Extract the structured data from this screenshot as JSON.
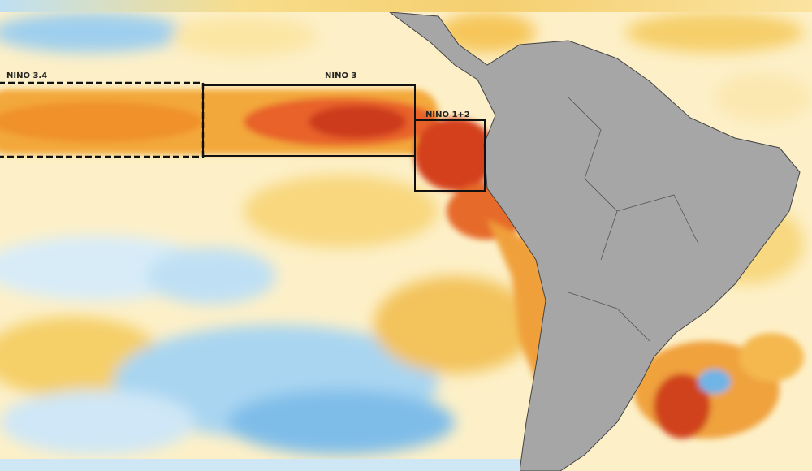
{
  "regions": [
    {
      "label": "NIÑO 3.4"
    },
    {
      "label": "NIÑO 3"
    },
    {
      "label": "NIÑO 1+2"
    }
  ]
}
